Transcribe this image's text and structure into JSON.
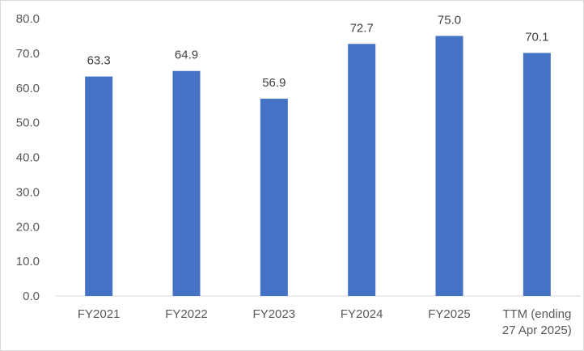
{
  "chart_data": {
    "type": "bar",
    "categories": [
      [
        "FY2021"
      ],
      [
        "FY2022"
      ],
      [
        "FY2023"
      ],
      [
        "FY2024"
      ],
      [
        "FY2025"
      ],
      [
        "TTM (ending",
        "27 Apr 2025)"
      ]
    ],
    "series": [
      {
        "values": [
          63.3,
          64.9,
          56.9,
          72.7,
          75.0,
          70.1
        ],
        "labels": [
          "63.3",
          "64.9",
          "56.9",
          "72.7",
          "75.0",
          "70.1"
        ]
      }
    ],
    "y_ticks": [
      "0.0",
      "10.0",
      "20.0",
      "30.0",
      "40.0",
      "50.0",
      "60.0",
      "70.0",
      "80.0"
    ],
    "ylim": [
      0,
      80
    ],
    "grid": false,
    "legend": "none",
    "colors": {
      "bar": "#4472C4"
    }
  }
}
